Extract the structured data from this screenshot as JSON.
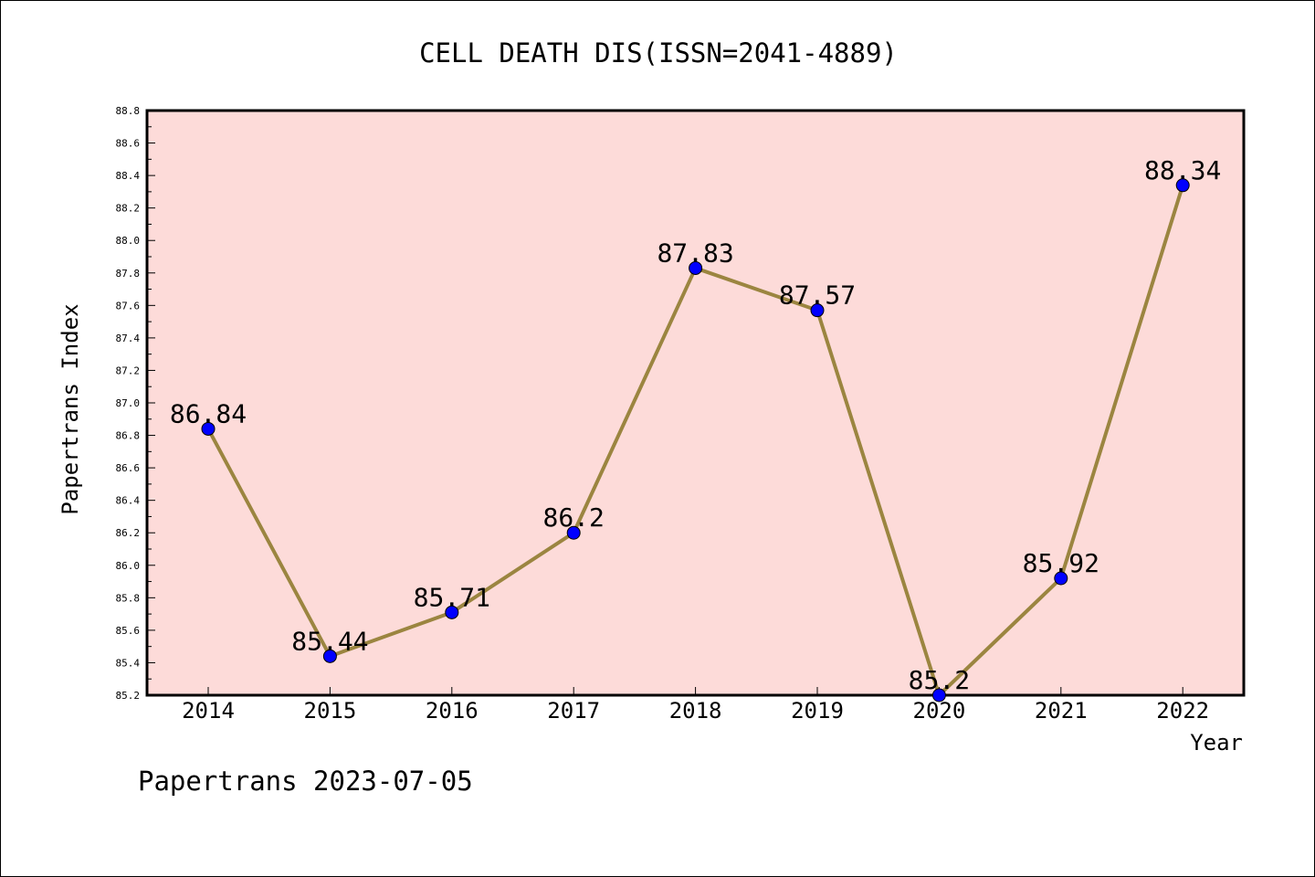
{
  "chart_data": {
    "type": "line",
    "title": "CELL DEATH DIS(ISSN=2041-4889)",
    "xlabel": "Year",
    "ylabel": "Papertrans Index",
    "footer": "Papertrans 2023-07-05",
    "categories": [
      "2014",
      "2015",
      "2016",
      "2017",
      "2018",
      "2019",
      "2020",
      "2021",
      "2022"
    ],
    "series": [
      {
        "values": [
          86.84,
          85.44,
          85.71,
          86.2,
          87.83,
          87.57,
          85.2,
          85.92,
          88.34
        ],
        "labels": [
          "86.84",
          "85.44",
          "85.71",
          "86.2",
          "87.83",
          "87.57",
          "85.2",
          "85.92",
          "88.34"
        ]
      }
    ],
    "ylim": [
      85.2,
      88.8
    ],
    "yticks": [
      "85.2",
      "85.4",
      "85.6",
      "85.8",
      "86.0",
      "86.2",
      "86.4",
      "86.6",
      "86.8",
      "87.0",
      "87.2",
      "87.4",
      "87.6",
      "87.8",
      "88.0",
      "88.2",
      "88.4",
      "88.6",
      "88.8"
    ],
    "grid": false,
    "colors": {
      "plot_background": "#fddbd9",
      "line": "#9b8540",
      "marker": "#0000ff"
    }
  }
}
